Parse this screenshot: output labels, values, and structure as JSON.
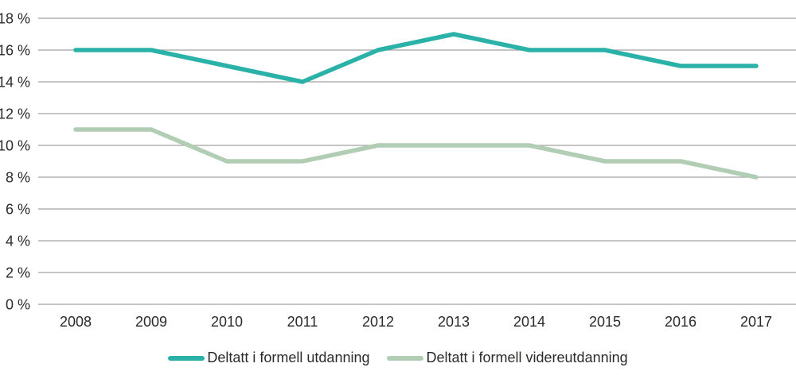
{
  "chart_data": {
    "type": "line",
    "title": "",
    "xlabel": "",
    "ylabel": "",
    "categories": [
      "2008",
      "2009",
      "2010",
      "2011",
      "2012",
      "2013",
      "2014",
      "2015",
      "2016",
      "2017"
    ],
    "series": [
      {
        "name": "Deltatt i formell utdanning",
        "color": "#2ab1a8",
        "values": [
          16,
          16,
          15,
          14,
          16,
          17,
          16,
          16,
          15,
          15
        ]
      },
      {
        "name": "Deltatt i formell videreutdanning",
        "color": "#b1cdb4",
        "values": [
          11,
          11,
          9,
          9,
          10,
          10,
          10,
          9,
          9,
          8
        ]
      }
    ],
    "ylim": [
      0,
      18
    ],
    "yticks": [
      0,
      2,
      4,
      6,
      8,
      10,
      12,
      14,
      16,
      18
    ],
    "ytick_suffix": " %",
    "grid": "horizontal",
    "gridline_color": "#a2a2a2",
    "text_color": "#2b2a29",
    "legend_position": "bottom"
  }
}
